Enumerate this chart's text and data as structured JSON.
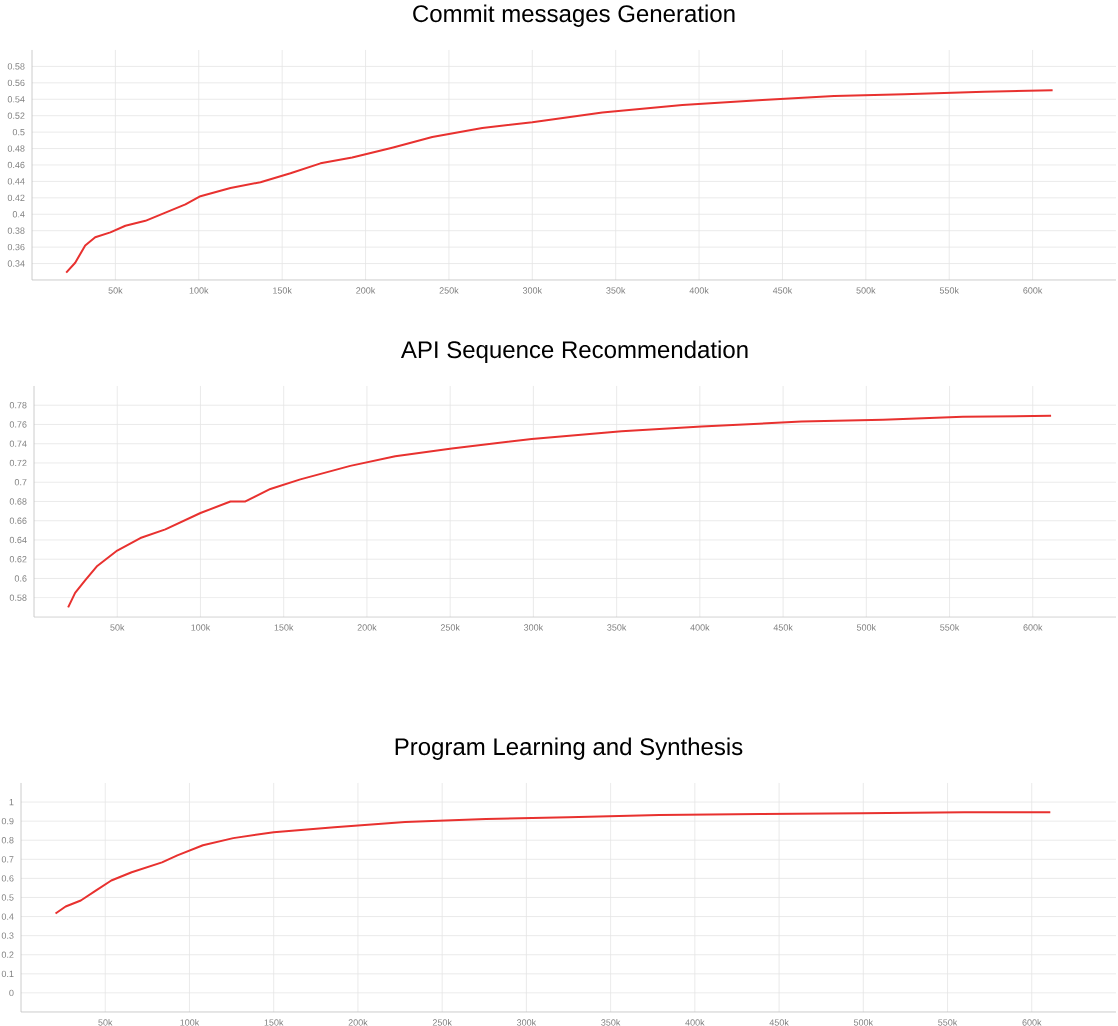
{
  "chart_data": [
    {
      "type": "line",
      "title": "Commit messages Generation",
      "color": "#e8312f",
      "grid": true,
      "x": [
        20500,
        25900,
        31900,
        37900,
        47000,
        56000,
        68000,
        80000,
        92000,
        101000,
        119000,
        137000,
        155000,
        173000,
        192000,
        216000,
        240000,
        270000,
        300000,
        342000,
        390000,
        438000,
        481000,
        523000,
        571000,
        612000
      ],
      "values": [
        0.329,
        0.341,
        0.362,
        0.372,
        0.378,
        0.386,
        0.392,
        0.402,
        0.412,
        0.422,
        0.432,
        0.439,
        0.45,
        0.462,
        0.469,
        0.481,
        0.494,
        0.505,
        0.512,
        0.524,
        0.533,
        0.539,
        0.544,
        0.546,
        0.549,
        0.551
      ],
      "xlim": [
        0,
        650000
      ],
      "ylim": [
        0.32,
        0.6
      ],
      "xticks": [
        {
          "value": 50000,
          "label": "50k"
        },
        {
          "value": 100000,
          "label": "100k"
        },
        {
          "value": 150000,
          "label": "150k"
        },
        {
          "value": 200000,
          "label": "200k"
        },
        {
          "value": 250000,
          "label": "250k"
        },
        {
          "value": 300000,
          "label": "300k"
        },
        {
          "value": 350000,
          "label": "350k"
        },
        {
          "value": 400000,
          "label": "400k"
        },
        {
          "value": 450000,
          "label": "450k"
        },
        {
          "value": 500000,
          "label": "500k"
        },
        {
          "value": 550000,
          "label": "550k"
        },
        {
          "value": 600000,
          "label": "600k"
        }
      ],
      "yticks": [
        0.34,
        0.36,
        0.38,
        0.4,
        0.42,
        0.44,
        0.46,
        0.48,
        0.5,
        0.52,
        0.54,
        0.56,
        0.58
      ]
    },
    {
      "type": "line",
      "title": "API Sequence Recommendation",
      "color": "#e8312f",
      "grid": true,
      "x": [
        20500,
        24700,
        30700,
        38000,
        50000,
        63900,
        78900,
        100000,
        118000,
        127000,
        142000,
        160000,
        190000,
        217000,
        251000,
        299000,
        353000,
        401000,
        461000,
        510000,
        558000,
        611000
      ],
      "values": [
        0.57,
        0.585,
        0.598,
        0.613,
        0.629,
        0.642,
        0.651,
        0.668,
        0.68,
        0.68,
        0.693,
        0.703,
        0.717,
        0.727,
        0.735,
        0.745,
        0.753,
        0.758,
        0.763,
        0.765,
        0.768,
        0.769
      ],
      "xlim": [
        0,
        650000
      ],
      "ylim": [
        0.56,
        0.8
      ],
      "xticks": [
        {
          "value": 50000,
          "label": "50k"
        },
        {
          "value": 100000,
          "label": "100k"
        },
        {
          "value": 150000,
          "label": "150k"
        },
        {
          "value": 200000,
          "label": "200k"
        },
        {
          "value": 250000,
          "label": "250k"
        },
        {
          "value": 300000,
          "label": "300k"
        },
        {
          "value": 350000,
          "label": "350k"
        },
        {
          "value": 400000,
          "label": "400k"
        },
        {
          "value": 450000,
          "label": "450k"
        },
        {
          "value": 500000,
          "label": "500k"
        },
        {
          "value": 550000,
          "label": "550k"
        },
        {
          "value": 600000,
          "label": "600k"
        }
      ],
      "yticks": [
        0.58,
        0.6,
        0.62,
        0.64,
        0.66,
        0.68,
        0.7,
        0.72,
        0.74,
        0.76,
        0.78
      ]
    },
    {
      "type": "line",
      "title": "Program Learning and Synthesis",
      "color": "#e8312f",
      "grid": true,
      "x": [
        20500,
        26500,
        35500,
        44600,
        53600,
        65700,
        83700,
        92800,
        108000,
        126000,
        150000,
        186000,
        228000,
        276000,
        325000,
        379000,
        439000,
        499000,
        560000,
        611000
      ],
      "values": [
        0.416,
        0.453,
        0.484,
        0.537,
        0.589,
        0.632,
        0.684,
        0.721,
        0.774,
        0.811,
        0.842,
        0.868,
        0.895,
        0.911,
        0.921,
        0.932,
        0.937,
        0.942,
        0.947,
        0.947
      ],
      "xlim": [
        0,
        650000
      ],
      "ylim": [
        -0.1,
        1.1
      ],
      "xticks": [
        {
          "value": 50000,
          "label": "50k"
        },
        {
          "value": 100000,
          "label": "100k"
        },
        {
          "value": 150000,
          "label": "150k"
        },
        {
          "value": 200000,
          "label": "200k"
        },
        {
          "value": 250000,
          "label": "250k"
        },
        {
          "value": 300000,
          "label": "300k"
        },
        {
          "value": 350000,
          "label": "350k"
        },
        {
          "value": 400000,
          "label": "400k"
        },
        {
          "value": 450000,
          "label": "450k"
        },
        {
          "value": 500000,
          "label": "500k"
        },
        {
          "value": 550000,
          "label": "550k"
        },
        {
          "value": 600000,
          "label": "600k"
        }
      ],
      "yticks": [
        0,
        0.1,
        0.2,
        0.3,
        0.4,
        0.5,
        0.6,
        0.7,
        0.8,
        0.9,
        1
      ]
    }
  ]
}
